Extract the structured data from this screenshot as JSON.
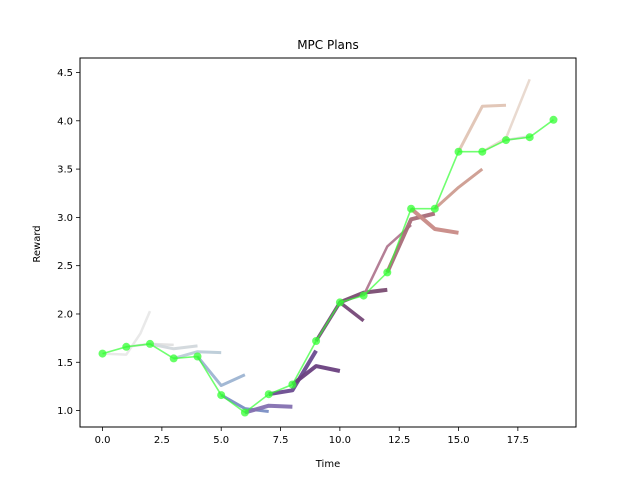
{
  "chart_data": {
    "type": "line",
    "title": "MPC Plans",
    "xlabel": "Time",
    "ylabel": "Reward",
    "xlim": [
      -0.95,
      19.95
    ],
    "ylim": [
      0.83,
      4.65
    ],
    "xticks": [
      0.0,
      2.5,
      5.0,
      7.5,
      10.0,
      12.5,
      15.0,
      17.5
    ],
    "xtick_labels": [
      "0.0",
      "2.5",
      "5.0",
      "7.5",
      "10.0",
      "12.5",
      "15.0",
      "17.5"
    ],
    "yticks": [
      1.0,
      1.5,
      2.0,
      2.5,
      3.0,
      3.5,
      4.0,
      4.5
    ],
    "ytick_labels": [
      "1.0",
      "1.5",
      "2.0",
      "2.5",
      "3.0",
      "3.5",
      "4.0",
      "4.5"
    ],
    "grid": false,
    "legend": false,
    "series": [
      {
        "color": "#33ff33",
        "marker": "circle",
        "points": [
          [
            0,
            1.59
          ],
          [
            1,
            1.66
          ],
          [
            2,
            1.69
          ],
          [
            3,
            1.54
          ],
          [
            4,
            1.56
          ],
          [
            5,
            1.16
          ],
          [
            6,
            0.98
          ],
          [
            7,
            1.17
          ],
          [
            8,
            1.27
          ],
          [
            9,
            1.72
          ],
          [
            10,
            2.12
          ],
          [
            11,
            2.19
          ],
          [
            12,
            2.43
          ],
          [
            13,
            3.09
          ],
          [
            14,
            3.09
          ],
          [
            15,
            3.68
          ],
          [
            16,
            3.68
          ],
          [
            17,
            3.8
          ],
          [
            18,
            3.83
          ],
          [
            19,
            4.01
          ]
        ]
      }
    ],
    "plans": [
      {
        "color": "#e8e8e8",
        "width": 2.5,
        "points": [
          [
            0,
            1.59
          ],
          [
            1,
            1.58
          ],
          [
            1.6,
            1.8
          ],
          [
            2,
            2.03
          ]
        ]
      },
      {
        "color": "#e0e0e0",
        "width": 2.5,
        "points": [
          [
            1,
            1.66
          ],
          [
            2,
            1.69
          ],
          [
            3,
            1.68
          ]
        ]
      },
      {
        "color": "#d2d8dc",
        "width": 3,
        "points": [
          [
            2,
            1.69
          ],
          [
            3,
            1.64
          ],
          [
            4,
            1.67
          ]
        ]
      },
      {
        "color": "#bcccd8",
        "width": 3,
        "points": [
          [
            3,
            1.54
          ],
          [
            4,
            1.61
          ],
          [
            5,
            1.6
          ]
        ]
      },
      {
        "color": "#9db4d2",
        "width": 3,
        "points": [
          [
            4,
            1.56
          ],
          [
            5,
            1.26
          ],
          [
            6,
            1.37
          ]
        ]
      },
      {
        "color": "#7a8ec4",
        "width": 3,
        "points": [
          [
            5,
            1.16
          ],
          [
            6,
            1.02
          ],
          [
            7,
            0.99
          ]
        ]
      },
      {
        "color": "#8470b0",
        "width": 4,
        "points": [
          [
            6,
            0.98
          ],
          [
            7,
            1.05
          ],
          [
            8,
            1.04
          ]
        ]
      },
      {
        "color": "#6c4c90",
        "width": 4,
        "points": [
          [
            7,
            1.17
          ],
          [
            8,
            1.21
          ],
          [
            9,
            1.62
          ]
        ]
      },
      {
        "color": "#6a4080",
        "width": 4,
        "points": [
          [
            8,
            1.27
          ],
          [
            9,
            1.46
          ],
          [
            10,
            1.41
          ]
        ]
      },
      {
        "color": "#764878",
        "width": 3.5,
        "points": [
          [
            9,
            1.72
          ],
          [
            10,
            2.12
          ],
          [
            11,
            1.93
          ]
        ]
      },
      {
        "color": "#7a4c72",
        "width": 4,
        "points": [
          [
            10,
            2.12
          ],
          [
            11,
            2.22
          ],
          [
            12,
            2.25
          ]
        ]
      },
      {
        "color": "#b07890",
        "width": 2.5,
        "points": [
          [
            11,
            2.19
          ],
          [
            12,
            2.7
          ],
          [
            13,
            2.92
          ]
        ]
      },
      {
        "color": "#a86c78",
        "width": 4,
        "points": [
          [
            12,
            2.43
          ],
          [
            13,
            2.98
          ],
          [
            14,
            3.04
          ]
        ]
      },
      {
        "color": "#c88a86",
        "width": 4,
        "points": [
          [
            13,
            3.09
          ],
          [
            14,
            2.88
          ],
          [
            15,
            2.84
          ]
        ]
      },
      {
        "color": "#ce9c90",
        "width": 3,
        "points": [
          [
            14,
            3.09
          ],
          [
            15,
            3.31
          ],
          [
            16,
            3.5
          ]
        ]
      },
      {
        "color": "#e0c4b4",
        "width": 3,
        "points": [
          [
            15,
            3.68
          ],
          [
            16,
            4.15
          ],
          [
            17,
            4.16
          ]
        ]
      },
      {
        "color": "#e8d8ce",
        "width": 2.5,
        "points": [
          [
            16,
            3.68
          ],
          [
            17,
            3.82
          ],
          [
            18,
            4.43
          ]
        ]
      },
      {
        "color": "#dcdcdc",
        "width": 2.5,
        "points": [
          [
            17,
            3.8
          ],
          [
            18,
            3.84
          ]
        ]
      }
    ]
  }
}
